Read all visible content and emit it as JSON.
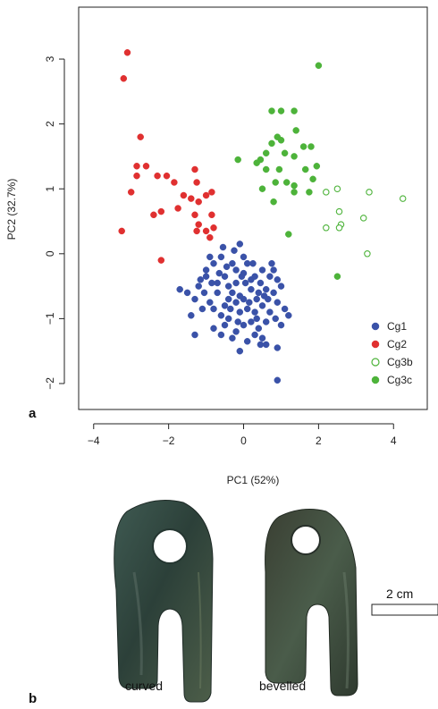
{
  "figure": {
    "panel_a_label": "a",
    "panel_b_label": "b"
  },
  "chart_data": {
    "type": "scatter",
    "title": "",
    "xlabel": "PC1 (52%)",
    "ylabel": "PC2 (32.7%)",
    "xlim": [
      -4.4,
      4.9
    ],
    "ylim": [
      -2.4,
      3.8
    ],
    "xticks": [
      -4,
      -2,
      0,
      2,
      4
    ],
    "xtick_labels": [
      "−4",
      "−2",
      "0",
      "2",
      "4"
    ],
    "yticks": [
      -2,
      -1,
      0,
      1,
      2,
      3
    ],
    "ytick_labels": [
      "−2",
      "−1",
      "0",
      "1",
      "2",
      "3"
    ],
    "grid": false,
    "legend_position": "bottom-right",
    "series": [
      {
        "name": "Cg1",
        "color": "#3a52a8",
        "marker": "filled-circle",
        "points": [
          [
            -0.1,
            0.15
          ],
          [
            0.0,
            -0.05
          ],
          [
            -0.3,
            -0.15
          ],
          [
            -0.6,
            -0.05
          ],
          [
            -0.8,
            -0.15
          ],
          [
            -0.9,
            -0.05
          ],
          [
            -1.0,
            -0.25
          ],
          [
            -0.5,
            -0.35
          ],
          [
            -0.7,
            -0.45
          ],
          [
            -1.2,
            -0.5
          ],
          [
            -1.5,
            -0.6
          ],
          [
            -1.7,
            -0.55
          ],
          [
            -1.3,
            -0.7
          ],
          [
            -1.1,
            -0.85
          ],
          [
            -1.4,
            -0.95
          ],
          [
            -1.3,
            -1.25
          ],
          [
            -0.8,
            -1.15
          ],
          [
            -0.6,
            -0.95
          ],
          [
            -0.9,
            -0.75
          ],
          [
            -0.5,
            -0.8
          ],
          [
            -0.3,
            -0.6
          ],
          [
            -0.2,
            -0.45
          ],
          [
            0.0,
            -0.3
          ],
          [
            0.1,
            -0.15
          ],
          [
            0.3,
            -0.35
          ],
          [
            0.5,
            -0.25
          ],
          [
            0.7,
            -0.35
          ],
          [
            0.9,
            -0.4
          ],
          [
            1.0,
            -0.5
          ],
          [
            0.8,
            -0.6
          ],
          [
            0.6,
            -0.55
          ],
          [
            0.4,
            -0.6
          ],
          [
            0.2,
            -0.55
          ],
          [
            0.0,
            -0.7
          ],
          [
            -0.2,
            -0.75
          ],
          [
            -0.4,
            -0.7
          ],
          [
            -0.1,
            -0.9
          ],
          [
            0.1,
            -0.85
          ],
          [
            0.3,
            -0.9
          ],
          [
            0.5,
            -0.8
          ],
          [
            0.7,
            -0.9
          ],
          [
            0.9,
            -0.75
          ],
          [
            1.1,
            -0.85
          ],
          [
            1.2,
            -0.95
          ],
          [
            0.6,
            -1.05
          ],
          [
            0.4,
            -1.15
          ],
          [
            0.2,
            -1.05
          ],
          [
            0.0,
            -1.1
          ],
          [
            -0.2,
            -1.2
          ],
          [
            -0.4,
            -1.0
          ],
          [
            0.1,
            -1.35
          ],
          [
            0.3,
            -1.25
          ],
          [
            0.5,
            -1.3
          ],
          [
            0.6,
            -1.4
          ],
          [
            0.9,
            -1.45
          ],
          [
            -0.3,
            -1.3
          ],
          [
            -0.1,
            -1.5
          ],
          [
            -0.6,
            -1.25
          ],
          [
            0.9,
            -1.95
          ],
          [
            -1.0,
            -0.35
          ],
          [
            -0.7,
            -0.6
          ],
          [
            -0.4,
            -0.5
          ],
          [
            -0.1,
            -0.65
          ],
          [
            0.2,
            -0.4
          ],
          [
            0.45,
            -0.45
          ],
          [
            0.65,
            -0.7
          ],
          [
            0.85,
            -1.0
          ],
          [
            1.0,
            -1.1
          ],
          [
            -0.25,
            0.05
          ],
          [
            -0.55,
            0.1
          ],
          [
            -0.8,
            -0.85
          ],
          [
            -0.2,
            -0.25
          ],
          [
            0.15,
            -0.75
          ],
          [
            0.35,
            -1.0
          ],
          [
            -0.45,
            -0.2
          ],
          [
            -1.05,
            -0.6
          ],
          [
            0.75,
            -0.15
          ],
          [
            -0.15,
            -1.05
          ],
          [
            0.05,
            -0.45
          ],
          [
            0.55,
            -0.65
          ],
          [
            -0.65,
            -0.3
          ],
          [
            -0.85,
            -0.45
          ],
          [
            -0.35,
            -0.85
          ],
          [
            0.25,
            -0.15
          ],
          [
            -0.05,
            -0.35
          ],
          [
            0.45,
            -1.4
          ],
          [
            -0.5,
            -1.1
          ],
          [
            0.8,
            -0.25
          ],
          [
            -1.15,
            -0.4
          ],
          [
            0.35,
            -0.7
          ]
        ]
      },
      {
        "name": "Cg2",
        "color": "#e03030",
        "marker": "filled-circle",
        "points": [
          [
            -3.1,
            3.1
          ],
          [
            -3.2,
            2.7
          ],
          [
            -2.75,
            1.8
          ],
          [
            -2.85,
            1.35
          ],
          [
            -2.6,
            1.35
          ],
          [
            -2.85,
            1.2
          ],
          [
            -3.0,
            0.95
          ],
          [
            -2.3,
            1.2
          ],
          [
            -2.05,
            1.2
          ],
          [
            -1.85,
            1.1
          ],
          [
            -1.3,
            1.3
          ],
          [
            -1.25,
            1.1
          ],
          [
            -1.6,
            0.9
          ],
          [
            -1.4,
            0.85
          ],
          [
            -1.2,
            0.8
          ],
          [
            -1.0,
            0.9
          ],
          [
            -0.85,
            0.95
          ],
          [
            -1.75,
            0.7
          ],
          [
            -2.2,
            0.65
          ],
          [
            -2.4,
            0.6
          ],
          [
            -1.3,
            0.6
          ],
          [
            -1.2,
            0.45
          ],
          [
            -1.0,
            0.35
          ],
          [
            -0.8,
            0.4
          ],
          [
            -0.85,
            0.6
          ],
          [
            -1.25,
            0.35
          ],
          [
            -0.9,
            0.25
          ],
          [
            -2.2,
            -0.1
          ],
          [
            -3.25,
            0.35
          ]
        ]
      },
      {
        "name": "Cg3b",
        "color": "#4db33a",
        "marker": "open-circle",
        "points": [
          [
            2.2,
            0.95
          ],
          [
            2.5,
            1.0
          ],
          [
            2.55,
            0.65
          ],
          [
            2.2,
            0.4
          ],
          [
            2.6,
            0.45
          ],
          [
            2.55,
            0.4
          ],
          [
            3.2,
            0.55
          ],
          [
            3.35,
            0.95
          ],
          [
            4.25,
            0.85
          ],
          [
            3.3,
            0.0
          ]
        ]
      },
      {
        "name": "Cg3c",
        "color": "#4db33a",
        "marker": "filled-circle",
        "points": [
          [
            2.0,
            2.9
          ],
          [
            0.75,
            2.2
          ],
          [
            1.0,
            2.2
          ],
          [
            1.35,
            2.2
          ],
          [
            0.9,
            1.8
          ],
          [
            1.0,
            1.75
          ],
          [
            1.4,
            1.9
          ],
          [
            1.6,
            1.65
          ],
          [
            1.8,
            1.65
          ],
          [
            0.6,
            1.55
          ],
          [
            0.75,
            1.7
          ],
          [
            1.1,
            1.55
          ],
          [
            1.35,
            1.5
          ],
          [
            0.45,
            1.45
          ],
          [
            0.35,
            1.4
          ],
          [
            0.6,
            1.3
          ],
          [
            0.95,
            1.3
          ],
          [
            1.65,
            1.3
          ],
          [
            1.95,
            1.35
          ],
          [
            1.15,
            1.1
          ],
          [
            0.85,
            1.1
          ],
          [
            1.35,
            1.05
          ],
          [
            1.85,
            1.15
          ],
          [
            0.5,
            1.0
          ],
          [
            1.35,
            0.95
          ],
          [
            0.8,
            0.8
          ],
          [
            -0.15,
            1.45
          ],
          [
            1.2,
            0.3
          ],
          [
            2.5,
            -0.35
          ],
          [
            1.75,
            0.95
          ]
        ]
      }
    ]
  },
  "photo": {
    "left_label": "curved",
    "right_label": "bevelled",
    "scale_label": "2 cm"
  }
}
